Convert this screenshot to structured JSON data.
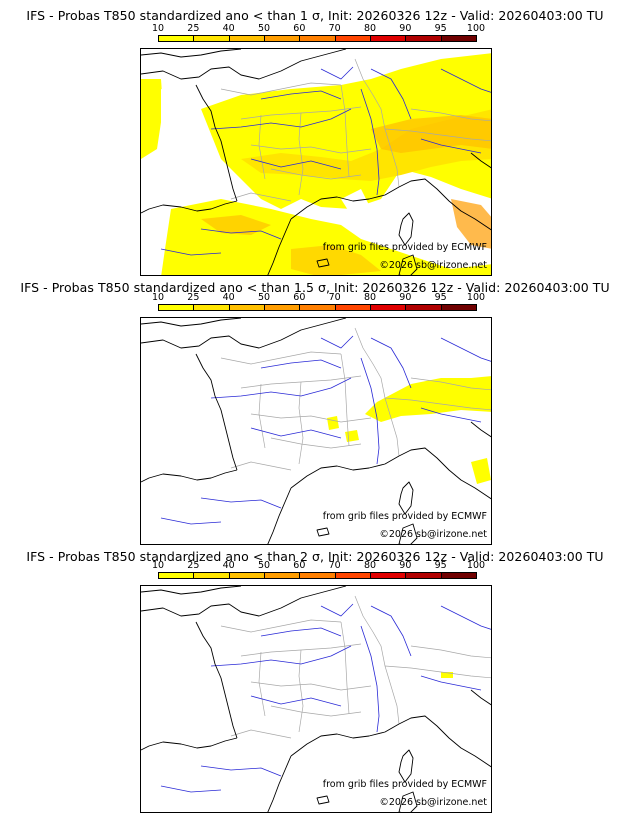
{
  "scale": {
    "ticks": [
      "10",
      "25",
      "40",
      "50",
      "60",
      "70",
      "80",
      "90",
      "95",
      "100"
    ],
    "colors": [
      "#ffff00",
      "#ffe500",
      "#ffc000",
      "#ff9d00",
      "#ff7f00",
      "#ff4500",
      "#e00000",
      "#b00000",
      "#700000"
    ]
  },
  "panels": [
    {
      "title": "IFS - Probas T850  standardized ano < than 1 σ, Init: 20260326 12z - Valid: 20260403:00 TU",
      "credit_grib": "from grib files provided by ECMWF",
      "credit_site": "©2026 sb@irizone.net",
      "coverage": "widespread yellow over France, Spain, Alps; orange over Alps and south-west"
    },
    {
      "title": "IFS - Probas T850  standardized ano < than 1.5 σ, Init: 20260326 12z - Valid: 20260403:00 TU",
      "credit_grib": "from grib files provided by ECMWF",
      "credit_site": "©2026 sb@irizone.net",
      "coverage": "small yellow patches over Alps and Italy"
    },
    {
      "title": "IFS - Probas T850  standardized ano < than 2 σ, Init: 20260326 12z - Valid: 20260403:00 TU",
      "credit_grib": "from grib files provided by ECMWF",
      "credit_site": "©2026 sb@irizone.net",
      "coverage": "almost none"
    }
  ],
  "map_colors": {
    "coast": "#000000",
    "rivers": "#2a2ad6",
    "borders": "#a8a8a8"
  }
}
